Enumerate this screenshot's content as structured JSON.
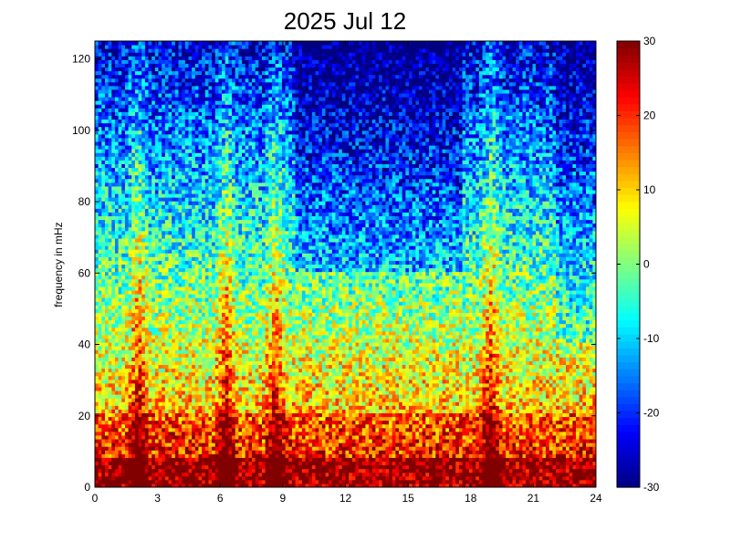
{
  "chart_data": {
    "type": "heatmap",
    "title": "2025 Jul 12",
    "xlabel": "",
    "ylabel": "frequency in mHz",
    "xlim": [
      0,
      24
    ],
    "ylim": [
      0,
      125
    ],
    "x_ticks": [
      "0",
      "3",
      "6",
      "9",
      "12",
      "15",
      "18",
      "21",
      "24"
    ],
    "y_ticks": [
      "0",
      "20",
      "40",
      "60",
      "80",
      "100",
      "120"
    ],
    "colorbar": {
      "colormap": "jet",
      "range": [
        -30,
        30
      ],
      "ticks": [
        "-30",
        "-20",
        "-10",
        "0",
        "10",
        "20",
        "30"
      ]
    },
    "grid": false,
    "approx_features": {
      "low_frequency_band_mHz": [
        0,
        8
      ],
      "low_frequency_band_level": 30,
      "bright_vertical_streaks_hours": [
        2,
        6.2,
        8.6,
        18.9
      ],
      "dark_region_hours": [
        9.5,
        17.5
      ],
      "dark_region_freq_mHz": [
        60,
        125
      ],
      "dark_region_level": -25
    }
  }
}
